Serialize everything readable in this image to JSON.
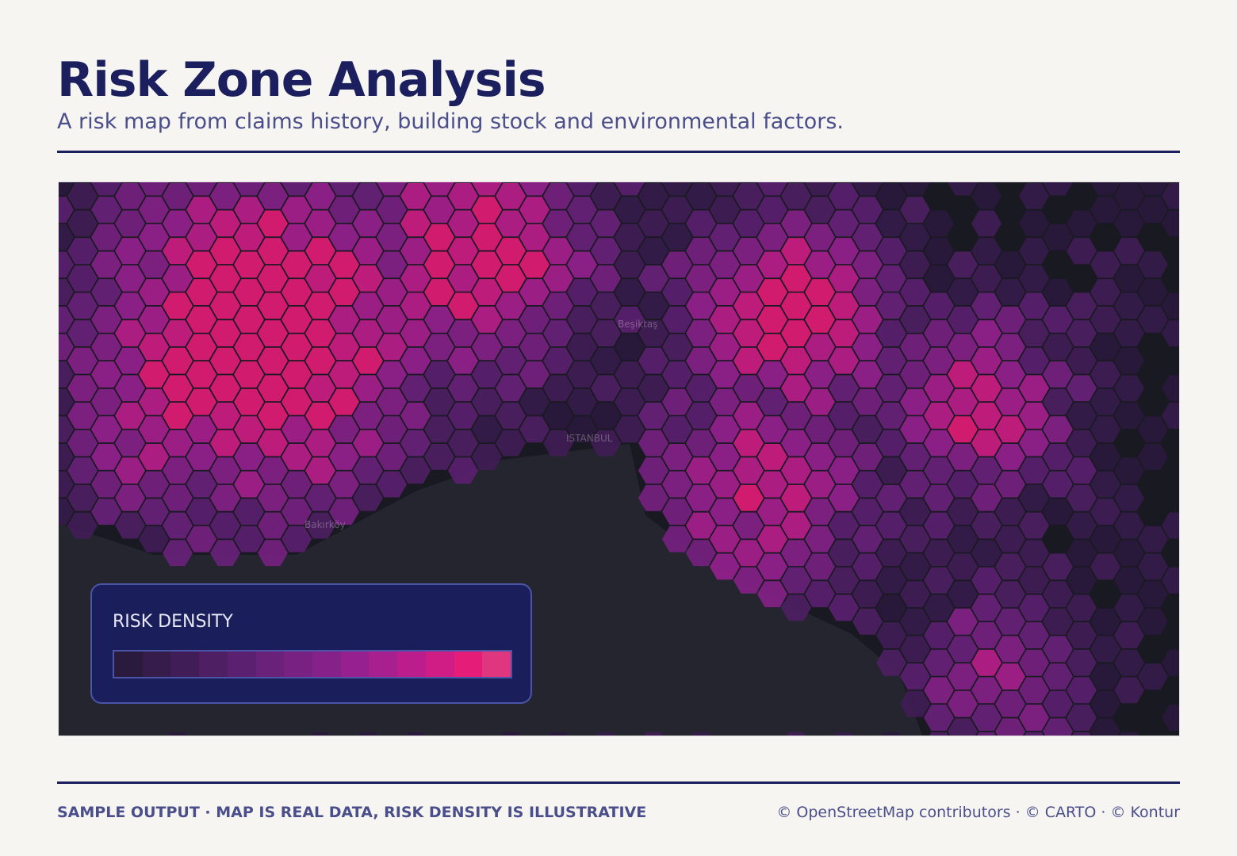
{
  "header": {
    "title": "Risk Zone Analysis",
    "subtitle": "A risk map from claims history, building stock and environmental factors."
  },
  "map": {
    "place_labels": [
      "Beşiktaş",
      "ISTANBUL",
      "Bakırköy"
    ]
  },
  "legend": {
    "title": "RISK DENSITY",
    "colors": [
      "#2a1a3e",
      "#351c4a",
      "#411d57",
      "#4e1f63",
      "#5b2070",
      "#69217a",
      "#782183",
      "#87218a",
      "#972090",
      "#a81f8f",
      "#bb1e8c",
      "#cf1d85",
      "#e51c78",
      "#e0357f"
    ]
  },
  "footer": {
    "note": "SAMPLE OUTPUT · MAP IS REAL DATA, RISK DENSITY IS ILLUSTRATIVE",
    "attribution": "© OpenStreetMap contributors · © CARTO · © Kontur"
  }
}
